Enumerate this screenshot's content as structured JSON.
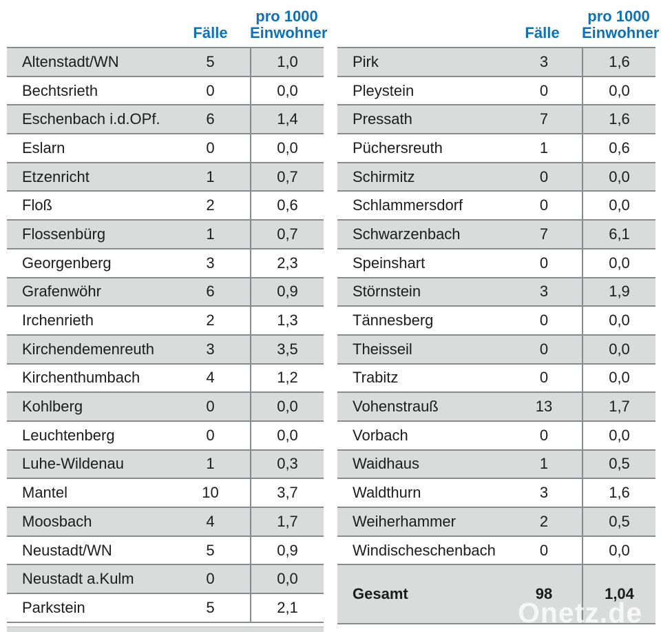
{
  "columns": {
    "cases_label": "Fälle",
    "rate_label_line1": "pro 1000",
    "rate_label_line2": "Einwohner"
  },
  "left_table": {
    "rows": [
      {
        "name": "Altenstadt/WN",
        "cases": "5",
        "rate": "1,0"
      },
      {
        "name": "Bechtsrieth",
        "cases": "0",
        "rate": "0,0"
      },
      {
        "name": "Eschenbach i.d.OPf.",
        "cases": "6",
        "rate": "1,4"
      },
      {
        "name": "Eslarn",
        "cases": "0",
        "rate": "0,0"
      },
      {
        "name": "Etzenricht",
        "cases": "1",
        "rate": "0,7"
      },
      {
        "name": "Floß",
        "cases": "2",
        "rate": "0,6"
      },
      {
        "name": "Flossenbürg",
        "cases": "1",
        "rate": "0,7"
      },
      {
        "name": "Georgenberg",
        "cases": "3",
        "rate": "2,3"
      },
      {
        "name": "Grafenwöhr",
        "cases": "6",
        "rate": "0,9"
      },
      {
        "name": "Irchenrieth",
        "cases": "2",
        "rate": "1,3"
      },
      {
        "name": "Kirchendemenreuth",
        "cases": "3",
        "rate": "3,5"
      },
      {
        "name": "Kirchenthumbach",
        "cases": "4",
        "rate": "1,2"
      },
      {
        "name": "Kohlberg",
        "cases": "0",
        "rate": "0,0"
      },
      {
        "name": "Leuchtenberg",
        "cases": "0",
        "rate": "0,0"
      },
      {
        "name": "Luhe-Wildenau",
        "cases": "1",
        "rate": "0,3"
      },
      {
        "name": "Mantel",
        "cases": "10",
        "rate": "3,7"
      },
      {
        "name": "Moosbach",
        "cases": "4",
        "rate": "1,7"
      },
      {
        "name": "Neustadt/WN",
        "cases": "5",
        "rate": "0,9"
      },
      {
        "name": "Neustadt a.Kulm",
        "cases": "0",
        "rate": "0,0"
      },
      {
        "name": "Parkstein",
        "cases": "5",
        "rate": "2,1"
      }
    ]
  },
  "right_table": {
    "rows": [
      {
        "name": "Pirk",
        "cases": "3",
        "rate": "1,6"
      },
      {
        "name": "Pleystein",
        "cases": "0",
        "rate": "0,0"
      },
      {
        "name": "Pressath",
        "cases": "7",
        "rate": "1,6"
      },
      {
        "name": "Püchersreuth",
        "cases": "1",
        "rate": "0,6"
      },
      {
        "name": "Schirmitz",
        "cases": "0",
        "rate": "0,0"
      },
      {
        "name": "Schlammersdorf",
        "cases": "0",
        "rate": "0,0"
      },
      {
        "name": "Schwarzenbach",
        "cases": "7",
        "rate": "6,1"
      },
      {
        "name": "Speinshart",
        "cases": "0",
        "rate": "0,0"
      },
      {
        "name": "Störnstein",
        "cases": "3",
        "rate": "1,9"
      },
      {
        "name": "Tännesberg",
        "cases": "0",
        "rate": "0,0"
      },
      {
        "name": "Theisseil",
        "cases": "0",
        "rate": "0,0"
      },
      {
        "name": "Trabitz",
        "cases": "0",
        "rate": "0,0"
      },
      {
        "name": "Vohenstrauß",
        "cases": "13",
        "rate": "1,7"
      },
      {
        "name": "Vorbach",
        "cases": "0",
        "rate": "0,0"
      },
      {
        "name": "Waidhaus",
        "cases": "1",
        "rate": "0,5"
      },
      {
        "name": "Waldthurn",
        "cases": "3",
        "rate": "1,6"
      },
      {
        "name": "Weiherhammer",
        "cases": "2",
        "rate": "0,5"
      },
      {
        "name": "Windischeschenbach",
        "cases": "0",
        "rate": "0,0"
      }
    ],
    "total_row": {
      "name": "Gesamt",
      "cases": "98",
      "rate": "1,04"
    }
  },
  "watermark": "Onetz.de",
  "colors": {
    "header_blue": "#0d72b3",
    "stripe_gray": "#dadbdb",
    "line_gray": "#878b8e"
  },
  "chart_data": {
    "type": "table",
    "columns": [
      "",
      "Fälle",
      "pro 1000 Einwohner"
    ],
    "rows": [
      [
        "Altenstadt/WN",
        5,
        1.0
      ],
      [
        "Bechtsrieth",
        0,
        0.0
      ],
      [
        "Eschenbach i.d.OPf.",
        6,
        1.4
      ],
      [
        "Eslarn",
        0,
        0.0
      ],
      [
        "Etzenricht",
        1,
        0.7
      ],
      [
        "Floß",
        2,
        0.6
      ],
      [
        "Flossenbürg",
        1,
        0.7
      ],
      [
        "Georgenberg",
        3,
        2.3
      ],
      [
        "Grafenwöhr",
        6,
        0.9
      ],
      [
        "Irchenrieth",
        2,
        1.3
      ],
      [
        "Kirchendemenreuth",
        3,
        3.5
      ],
      [
        "Kirchenthumbach",
        4,
        1.2
      ],
      [
        "Kohlberg",
        0,
        0.0
      ],
      [
        "Leuchtenberg",
        0,
        0.0
      ],
      [
        "Luhe-Wildenau",
        1,
        0.3
      ],
      [
        "Mantel",
        10,
        3.7
      ],
      [
        "Moosbach",
        4,
        1.7
      ],
      [
        "Neustadt/WN",
        5,
        0.9
      ],
      [
        "Neustadt a.Kulm",
        0,
        0.0
      ],
      [
        "Parkstein",
        5,
        2.1
      ],
      [
        "Pirk",
        3,
        1.6
      ],
      [
        "Pleystein",
        0,
        0.0
      ],
      [
        "Pressath",
        7,
        1.6
      ],
      [
        "Püchersreuth",
        1,
        0.6
      ],
      [
        "Schirmitz",
        0,
        0.0
      ],
      [
        "Schlammersdorf",
        0,
        0.0
      ],
      [
        "Schwarzenbach",
        7,
        6.1
      ],
      [
        "Speinshart",
        0,
        0.0
      ],
      [
        "Störnstein",
        3,
        1.9
      ],
      [
        "Tännesberg",
        0,
        0.0
      ],
      [
        "Theisseil",
        0,
        0.0
      ],
      [
        "Trabitz",
        0,
        0.0
      ],
      [
        "Vohenstrauß",
        13,
        1.7
      ],
      [
        "Vorbach",
        0,
        0.0
      ],
      [
        "Waidhaus",
        1,
        0.5
      ],
      [
        "Waldthurn",
        3,
        1.6
      ],
      [
        "Weiherhammer",
        2,
        0.5
      ],
      [
        "Windischeschenbach",
        0,
        0.0
      ]
    ],
    "total": [
      "Gesamt",
      98,
      1.04
    ],
    "layout": "two side-by-side tables, alternating gray/white row stripes, vertical divider before last column"
  }
}
